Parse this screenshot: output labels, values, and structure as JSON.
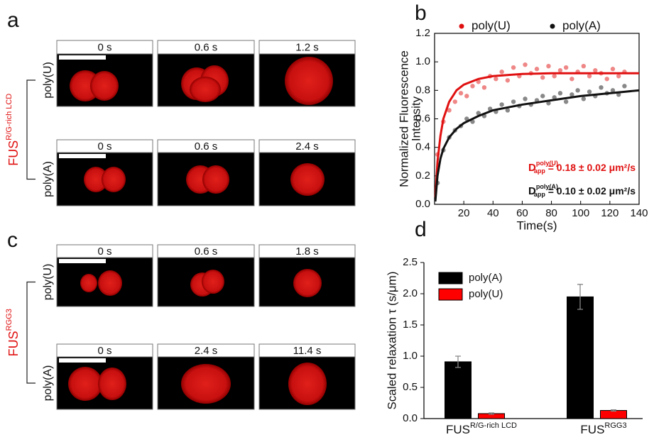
{
  "image_panels": [
    {
      "letter": "a",
      "protein": "FUS",
      "protein_sup": "R/G-rich LCD",
      "rows": [
        {
          "label": "poly(U)",
          "times": [
            "0 s",
            "0.6 s",
            "1.2 s"
          ]
        },
        {
          "label": "poly(A)",
          "times": [
            "0 s",
            "0.6 s",
            "2.4 s"
          ]
        }
      ]
    },
    {
      "letter": "c",
      "protein": "FUS",
      "protein_sup": "RGG3",
      "rows": [
        {
          "label": "poly(U)",
          "times": [
            "0 s",
            "0.6 s",
            "1.8 s"
          ]
        },
        {
          "label": "poly(A)",
          "times": [
            "0 s",
            "2.4 s",
            "11.4 s"
          ]
        }
      ]
    }
  ],
  "chart_data": [
    {
      "type": "scatter",
      "letter": "b",
      "xlabel": "Time(s)",
      "ylabel": [
        "Normalized Fluorescence",
        "Intensity"
      ],
      "xlim": [
        0,
        140
      ],
      "xticks": [
        20,
        40,
        60,
        80,
        100,
        120,
        140
      ],
      "ylim": [
        0,
        1.2
      ],
      "yticks": [
        {
          "value": 0,
          "label": "0.0"
        },
        0.2,
        0.4,
        0.6,
        0.8,
        {
          "value": 1,
          "label": "1.0"
        },
        1.2
      ],
      "legend": "top",
      "x": [
        2,
        6,
        10,
        14,
        18,
        22,
        26,
        30,
        34,
        38,
        42,
        46,
        50,
        54,
        58,
        62,
        66,
        70,
        74,
        78,
        82,
        86,
        90,
        94,
        98,
        102,
        106,
        110,
        114,
        118,
        122,
        126,
        130
      ],
      "fit_x": [
        0.5,
        2,
        4,
        6,
        10,
        15,
        20,
        30,
        40,
        60,
        80,
        100,
        120,
        140
      ],
      "series": [
        {
          "name": "poly(U)",
          "color": "#e01010",
          "values": [
            0.35,
            0.58,
            0.66,
            0.72,
            0.78,
            0.76,
            0.83,
            0.86,
            0.82,
            0.9,
            0.88,
            0.93,
            0.87,
            0.96,
            0.9,
            0.98,
            0.92,
            0.95,
            0.89,
            0.97,
            0.9,
            0.94,
            0.96,
            0.88,
            0.93,
            0.97,
            0.9,
            0.94,
            0.92,
            0.88,
            0.95,
            0.9,
            0.93
          ],
          "fit": [
            0.05,
            0.3,
            0.48,
            0.6,
            0.72,
            0.8,
            0.84,
            0.88,
            0.9,
            0.915,
            0.92,
            0.92,
            0.92,
            0.92
          ]
        },
        {
          "name": "poly(A)",
          "color": "#111111",
          "values": [
            0.15,
            0.38,
            0.47,
            0.52,
            0.55,
            0.6,
            0.58,
            0.64,
            0.62,
            0.67,
            0.65,
            0.7,
            0.66,
            0.72,
            0.69,
            0.74,
            0.7,
            0.73,
            0.76,
            0.71,
            0.75,
            0.78,
            0.72,
            0.77,
            0.8,
            0.74,
            0.79,
            0.76,
            0.82,
            0.78,
            0.8,
            0.77,
            0.83
          ],
          "fit": [
            0.02,
            0.2,
            0.32,
            0.39,
            0.47,
            0.53,
            0.57,
            0.62,
            0.66,
            0.7,
            0.73,
            0.76,
            0.78,
            0.8
          ]
        }
      ],
      "annotations": [
        {
          "main": "D",
          "sub": "app",
          "sup": "poly(U)",
          "text": " = 0.18 ± 0.02 μm²/s",
          "color": "#e01010"
        },
        {
          "main": "D",
          "sub": "app",
          "sup": "poly(A)",
          "text": " = 0.10 ± 0.02 μm²/s",
          "color": "#111111"
        }
      ]
    },
    {
      "type": "bar",
      "letter": "d",
      "ylabel": "Scaled relaxation τ (s/μm)",
      "categories": [
        "FUS",
        "FUS"
      ],
      "category_sups": [
        "R/G-rich LCD",
        "RGG3"
      ],
      "ylim": [
        0,
        2.5
      ],
      "yticks": [
        {
          "value": 0,
          "label": "0.0"
        },
        0.5,
        {
          "value": 1,
          "label": "1.0"
        },
        1.5,
        {
          "value": 2,
          "label": "2.0"
        },
        2.5
      ],
      "legend": "top-left",
      "series": [
        {
          "name": "poly(A)",
          "color": "#000000",
          "values": [
            0.91,
            1.95
          ],
          "errors": [
            0.09,
            0.2
          ]
        },
        {
          "name": "poly(U)",
          "color": "#ff0000",
          "values": [
            0.08,
            0.13
          ],
          "errors": [
            0.01,
            0.01
          ]
        }
      ]
    }
  ]
}
